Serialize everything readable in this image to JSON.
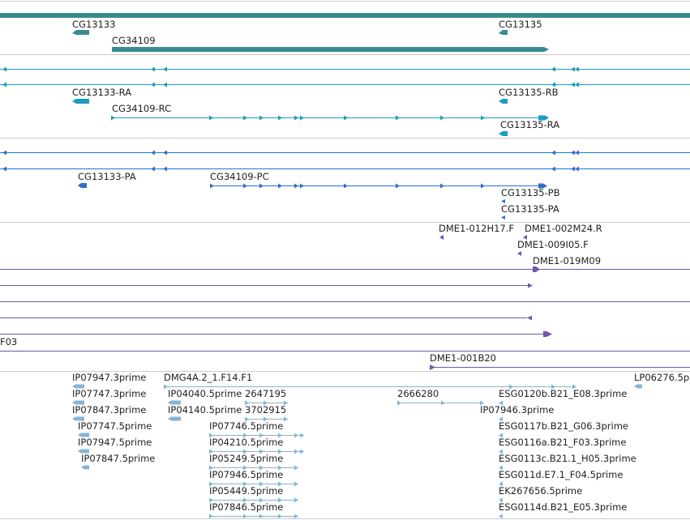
{
  "colors": {
    "genes": "#3a8c8c",
    "transcripts": "#1a9dc0",
    "proteins": "#2f6fc8",
    "clones": "#7057a8",
    "ests": "#86b4d6",
    "separator": "#cccccc"
  },
  "tracks": {
    "genes": {
      "labels": [
        "CG13133",
        "CG34109",
        "CG13135"
      ]
    },
    "transcripts": {
      "labels": [
        "CG13133-RA",
        "CG34109-RC",
        "CG13135-RB",
        "CG13135-RA"
      ]
    },
    "proteins": {
      "labels": [
        "CG13133-PA",
        "CG34109-PC",
        "CG13135-PB",
        "CG13135-PA"
      ]
    },
    "clones": {
      "labels": [
        "DME1-012H17.F",
        "DME1-002M24.R",
        "DME1-009I05.F",
        "DME1-019M09",
        "F03",
        "DME1-001B20"
      ]
    },
    "ests": {
      "labels": [
        "IP07947.3prime",
        "DMG4A.2_1.F14.F1",
        "LP06276.5p",
        "IP07747.3prime",
        "IP04040.5prime",
        "2647195",
        "2666280",
        "ESG0120b.B21_E08.3prime",
        "IP07847.3prime",
        "IP04140.5prime",
        "3702915",
        "IP07946.3prime",
        "IP07747.5prime",
        "IP07746.5prime",
        "ESG0117b.B21_G06.3prime",
        "IP07947.5prime",
        "IP04210.5prime",
        "ESG0116a.B21_F03.3prime",
        "IP07847.5prime",
        "IP05249.5prime",
        "ESG0113c.B21.1_H05.3prime",
        "IP07946.5prime",
        "ESG011d.E7.1_F04.5prime",
        "IP05449.5prime",
        "EK267656.5prime",
        "IP07846.5prime",
        "ESG0114d.B21_E05.3prime"
      ]
    }
  }
}
